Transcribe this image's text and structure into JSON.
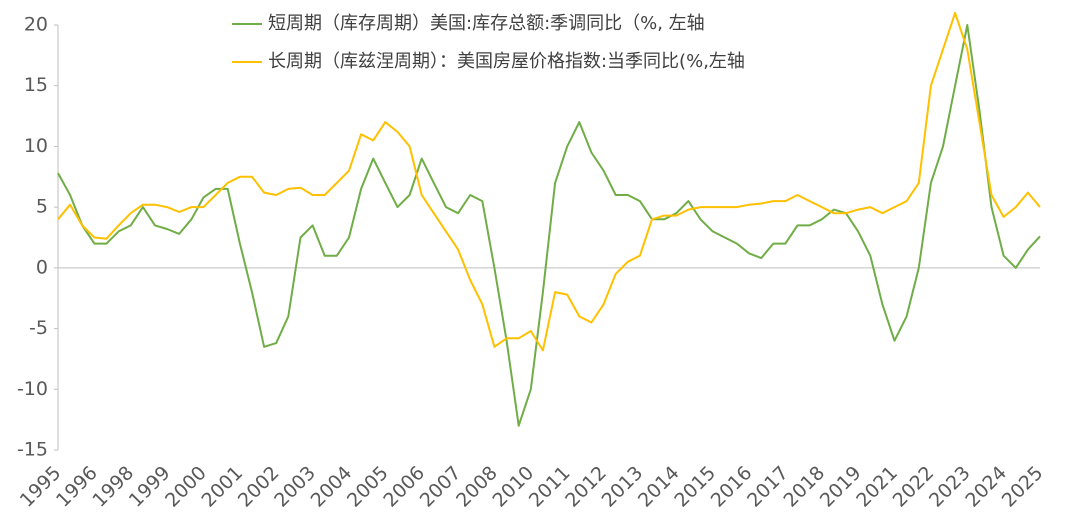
{
  "chart_data": {
    "type": "line",
    "categories": [
      "1995",
      null,
      null,
      "1996",
      null,
      null,
      "1998",
      null,
      null,
      "1999",
      null,
      null,
      "2000",
      null,
      null,
      "2001",
      null,
      null,
      "2002",
      null,
      null,
      "2003",
      null,
      null,
      "2004",
      null,
      null,
      "2005",
      null,
      null,
      "2006",
      null,
      null,
      "2007",
      null,
      null,
      "2008",
      null,
      null,
      "2010",
      null,
      null,
      "2011",
      null,
      null,
      "2012",
      null,
      null,
      "2013",
      null,
      null,
      "2014",
      null,
      null,
      "2015",
      null,
      null,
      "2016",
      null,
      null,
      "2017",
      null,
      null,
      "2018",
      null,
      null,
      "2019",
      null,
      null,
      "2021",
      null,
      null,
      "2022",
      null,
      null,
      "2023",
      null,
      null,
      "2024",
      null,
      null,
      "2025"
    ],
    "series": [
      {
        "name": "短周期（库存周期）美国:库存总额:季调同比（%,  左轴",
        "color": "#70ad47",
        "values": [
          7.8,
          6,
          3.5,
          2,
          2,
          3,
          3.5,
          5,
          3.5,
          3.2,
          2.8,
          4,
          5.8,
          6.5,
          6.5,
          2,
          -2,
          -6.5,
          -6.2,
          -4,
          2.5,
          3.5,
          1,
          1,
          2.5,
          6.5,
          9,
          7,
          5,
          6,
          9,
          7,
          5,
          4.5,
          6,
          5.5,
          0,
          -6,
          -13,
          -10,
          -2,
          7,
          10,
          12,
          9.5,
          8,
          6,
          6,
          5.5,
          4,
          4,
          4.5,
          5.5,
          4,
          3,
          2.5,
          2,
          1.2,
          0.8,
          2,
          2,
          3.5,
          3.5,
          4,
          4.8,
          4.5,
          3,
          1,
          -3,
          -6,
          -4,
          0,
          7,
          10,
          15,
          20,
          13,
          5,
          1,
          0,
          1.5,
          2.6
        ]
      },
      {
        "name": "长周期（库兹涅周期）：美国房屋价格指数:当季同比(%,左轴",
        "color": "#ffc000",
        "values": [
          4,
          5.2,
          3.5,
          2.5,
          2.4,
          3.5,
          4.5,
          5.2,
          5.2,
          5,
          4.6,
          5,
          5,
          6,
          7,
          7.5,
          7.5,
          6.2,
          6,
          6.5,
          6.6,
          6,
          6,
          7,
          8,
          11,
          10.5,
          12,
          11.2,
          10,
          6,
          4.5,
          3,
          1.5,
          -1,
          -3,
          -6.5,
          -5.8,
          -5.8,
          -5.2,
          -6.8,
          -2,
          -2.2,
          -4,
          -4.5,
          -3,
          -0.5,
          0.5,
          1,
          4,
          4.3,
          4.3,
          4.8,
          5,
          5,
          5,
          5,
          5.2,
          5.3,
          5.5,
          5.5,
          6,
          5.5,
          5,
          4.5,
          4.5,
          4.8,
          5,
          4.5,
          5,
          5.5,
          7,
          15,
          18,
          21,
          18,
          12,
          6,
          4.2,
          5,
          6.2,
          5
        ]
      }
    ],
    "ylim": [
      -15,
      20
    ],
    "yticks": [
      -15,
      -10,
      -5,
      0,
      5,
      10,
      15,
      20
    ]
  }
}
